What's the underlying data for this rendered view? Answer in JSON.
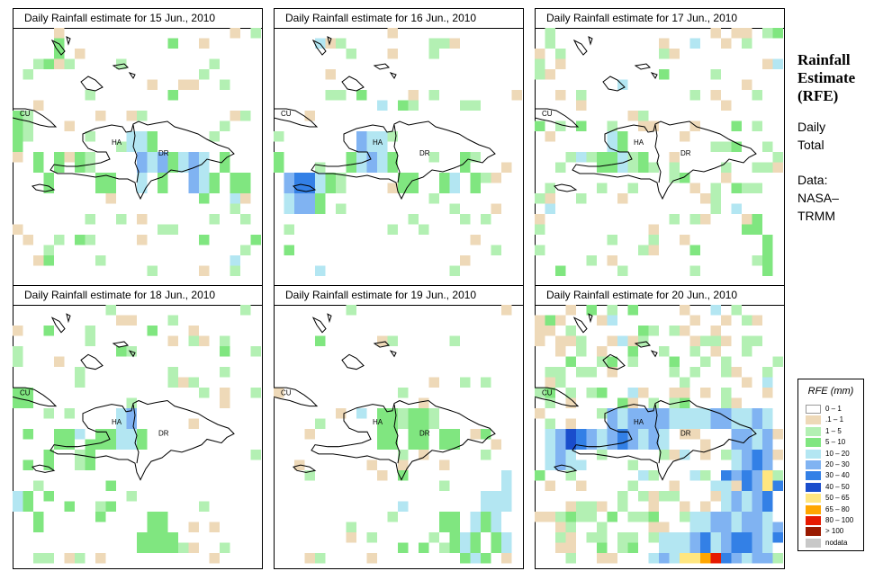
{
  "panels": [
    {
      "title": "Daily Rainfall estimate for  15 Jun., 2010",
      "variant": 0
    },
    {
      "title": "Daily Rainfall estimate for  16 Jun., 2010",
      "variant": 1
    },
    {
      "title": "Daily Rainfall estimate for  17 Jun., 2010",
      "variant": 2
    },
    {
      "title": "Daily Rainfall estimate for  18 Jun., 2010",
      "variant": 3
    },
    {
      "title": "Daily Rainfall estimate for  19 Jun., 2010",
      "variant": 4
    },
    {
      "title": "Daily Rainfall estimate for  20 Jun., 2010",
      "variant": 5
    }
  ],
  "map_labels": {
    "cuba": "CU",
    "haiti": "HA",
    "dominican_republic": "DR"
  },
  "side": {
    "title_line1": "Rainfall",
    "title_line2": "Estimate",
    "title_line3": "(RFE)",
    "period_line1": "Daily",
    "period_line2": "Total",
    "source_line1": "Data:",
    "source_line2": "NASA–",
    "source_line3": "TRMM"
  },
  "legend": {
    "title": "RFE (mm)",
    "items": [
      {
        "label": "0 – 1",
        "color": "#ffffff"
      },
      {
        "label": ".1 – 1",
        "color": "#eed9b8"
      },
      {
        "label": "1 – 5",
        "color": "#b3f0b3"
      },
      {
        "label": "5 – 10",
        "color": "#80e680"
      },
      {
        "label": "10 – 20",
        "color": "#b3e6f2"
      },
      {
        "label": "20 – 30",
        "color": "#80b3f2"
      },
      {
        "label": "30 – 40",
        "color": "#3380e6"
      },
      {
        "label": "40 – 50",
        "color": "#1a4dcc"
      },
      {
        "label": "50 – 65",
        "color": "#ffe680"
      },
      {
        "label": "65 – 80",
        "color": "#ffa600"
      },
      {
        "label": "80 – 100",
        "color": "#e61a00"
      },
      {
        "label": "> 100",
        "color": "#991a00"
      },
      {
        "label": "nodata",
        "color": "#c8c8c8"
      }
    ]
  }
}
